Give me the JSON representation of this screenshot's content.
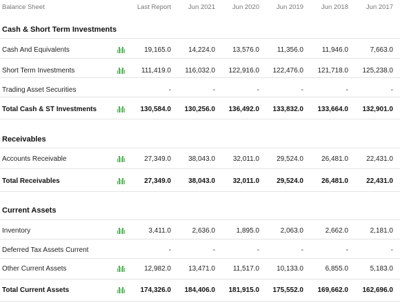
{
  "header": {
    "title": "Balance Sheet",
    "columns": [
      "Last Report",
      "Jun 2021",
      "Jun 2020",
      "Jun 2019",
      "Jun 2018",
      "Jun 2017"
    ]
  },
  "sections": [
    {
      "title": "Cash & Short Term Investments",
      "rows": [
        {
          "label": "Cash And Equivalents",
          "values": [
            "19,165.0",
            "14,224.0",
            "13,576.0",
            "11,356.0",
            "11,946.0",
            "7,663.0"
          ],
          "spark": true,
          "bold": false
        },
        {
          "label": "Short Term Investments",
          "values": [
            "111,419.0",
            "116,032.0",
            "122,916.0",
            "122,476.0",
            "121,718.0",
            "125,238.0"
          ],
          "spark": true,
          "bold": false
        },
        {
          "label": "Trading Asset Securities",
          "values": [
            "-",
            "-",
            "-",
            "-",
            "-",
            "-"
          ],
          "spark": false,
          "bold": false
        },
        {
          "label": "Total Cash & ST Investments",
          "values": [
            "130,584.0",
            "130,256.0",
            "136,492.0",
            "133,832.0",
            "133,664.0",
            "132,901.0"
          ],
          "spark": true,
          "bold": true
        }
      ]
    },
    {
      "title": "Receivables",
      "rows": [
        {
          "label": "Accounts Receivable",
          "values": [
            "27,349.0",
            "38,043.0",
            "32,011.0",
            "29,524.0",
            "26,481.0",
            "22,431.0"
          ],
          "spark": true,
          "bold": false
        },
        {
          "label": "Total Receivables",
          "values": [
            "27,349.0",
            "38,043.0",
            "32,011.0",
            "29,524.0",
            "26,481.0",
            "22,431.0"
          ],
          "spark": true,
          "bold": true
        }
      ]
    },
    {
      "title": "Current Assets",
      "rows": [
        {
          "label": "Inventory",
          "values": [
            "3,411.0",
            "2,636.0",
            "1,895.0",
            "2,063.0",
            "2,662.0",
            "2,181.0"
          ],
          "spark": true,
          "bold": false
        },
        {
          "label": "Deferred Tax Assets Current",
          "values": [
            "-",
            "-",
            "-",
            "-",
            "-",
            "-"
          ],
          "spark": false,
          "bold": false
        },
        {
          "label": "Other Current Assets",
          "values": [
            "12,982.0",
            "13,471.0",
            "11,517.0",
            "10,133.0",
            "6,855.0",
            "5,183.0"
          ],
          "spark": true,
          "bold": false
        },
        {
          "label": "Total Current Assets",
          "values": [
            "174,326.0",
            "184,406.0",
            "181,915.0",
            "175,552.0",
            "169,662.0",
            "162,696.0"
          ],
          "spark": true,
          "bold": true
        }
      ]
    }
  ],
  "colors": {
    "spark": "#4caf50",
    "divider": "#e3e3e3",
    "header_text": "#777777"
  }
}
